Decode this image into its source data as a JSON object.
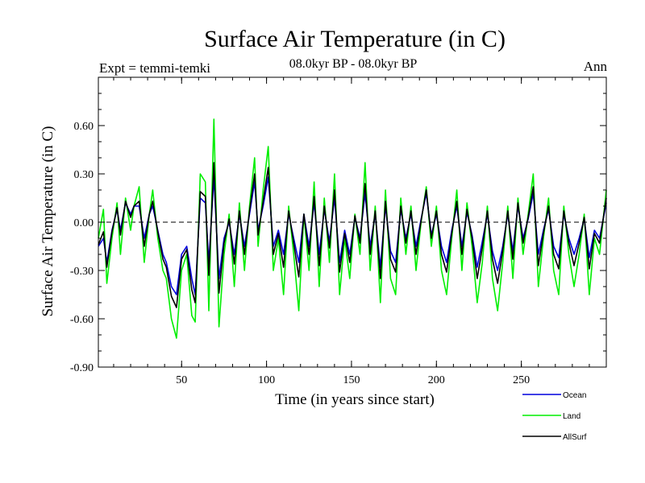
{
  "chart_data": {
    "type": "line",
    "title": "Surface Air Temperature (in C)",
    "subtitle": "08.0kyr BP - 08.0kyr BP",
    "top_left_label": "Expt = temmi-temki",
    "top_right_label": "Ann",
    "xlabel": "Time (in years since start)",
    "ylabel": "Surface Air Temperature (in C)",
    "xlim": [
      1,
      300
    ],
    "ylim": [
      -0.9,
      0.9
    ],
    "x_ticks": [
      50,
      100,
      150,
      200,
      250
    ],
    "x_tick_labels": [
      "50",
      "100",
      "150",
      "200",
      "250"
    ],
    "y_ticks": [
      -0.9,
      -0.6,
      -0.3,
      0.0,
      0.3,
      0.6
    ],
    "y_tick_labels": [
      "-0.90",
      "-0.60",
      "-0.30",
      "0.00",
      "0.30",
      "0.60"
    ],
    "zero_line": true,
    "legend_position": "bottom-right, below plot",
    "series": [
      {
        "name": "Land",
        "color": "#00ee00",
        "x": [
          1,
          4,
          6,
          9,
          12,
          14,
          17,
          20,
          22,
          25,
          28,
          31,
          33,
          36,
          39,
          41,
          44,
          47,
          50,
          53,
          56,
          58,
          61,
          64,
          66,
          69,
          72,
          75,
          78,
          81,
          84,
          87,
          90,
          93,
          95,
          98,
          101,
          104,
          107,
          110,
          113,
          116,
          119,
          122,
          125,
          128,
          131,
          134,
          137,
          140,
          143,
          146,
          149,
          152,
          155,
          158,
          161,
          164,
          167,
          170,
          173,
          176,
          179,
          182,
          185,
          188,
          191,
          194,
          197,
          200,
          203,
          206,
          209,
          212,
          215,
          218,
          221,
          224,
          227,
          230,
          233,
          236,
          239,
          242,
          245,
          248,
          251,
          254,
          257,
          260,
          263,
          266,
          269,
          272,
          275,
          278,
          281,
          284,
          287,
          290,
          293,
          296,
          300
        ],
        "y": [
          -0.1,
          0.08,
          -0.38,
          -0.1,
          0.12,
          -0.2,
          0.15,
          -0.05,
          0.1,
          0.22,
          -0.25,
          0.05,
          0.2,
          -0.1,
          -0.3,
          -0.35,
          -0.6,
          -0.72,
          -0.3,
          -0.2,
          -0.58,
          -0.62,
          0.3,
          0.25,
          -0.55,
          0.64,
          -0.65,
          -0.2,
          0.05,
          -0.4,
          0.12,
          -0.3,
          0.1,
          0.4,
          -0.15,
          0.2,
          0.47,
          -0.3,
          -0.1,
          -0.45,
          0.1,
          -0.2,
          -0.55,
          0.05,
          -0.3,
          0.25,
          -0.4,
          0.15,
          -0.25,
          0.3,
          -0.45,
          -0.1,
          -0.35,
          0.05,
          -0.2,
          0.37,
          -0.3,
          0.1,
          -0.5,
          0.2,
          -0.35,
          -0.45,
          0.15,
          -0.2,
          0.1,
          -0.3,
          0.0,
          0.22,
          -0.15,
          0.1,
          -0.3,
          -0.45,
          -0.1,
          0.2,
          -0.3,
          0.12,
          -0.15,
          -0.5,
          -0.25,
          0.1,
          -0.35,
          -0.55,
          -0.25,
          0.1,
          -0.35,
          0.15,
          -0.2,
          0.05,
          0.3,
          -0.4,
          -0.1,
          0.15,
          -0.3,
          -0.45,
          0.1,
          -0.2,
          -0.4,
          -0.2,
          0.05,
          -0.45,
          -0.1,
          -0.2,
          0.2
        ]
      },
      {
        "name": "Ocean",
        "color": "#0000dd",
        "x": [
          1,
          4,
          6,
          9,
          12,
          14,
          17,
          20,
          22,
          25,
          28,
          31,
          33,
          36,
          39,
          41,
          44,
          47,
          50,
          53,
          56,
          58,
          61,
          64,
          66,
          69,
          72,
          75,
          78,
          81,
          84,
          87,
          90,
          93,
          95,
          98,
          101,
          104,
          107,
          110,
          113,
          116,
          119,
          122,
          125,
          128,
          131,
          134,
          137,
          140,
          143,
          146,
          149,
          152,
          155,
          158,
          161,
          164,
          167,
          170,
          173,
          176,
          179,
          182,
          185,
          188,
          191,
          194,
          197,
          200,
          203,
          206,
          209,
          212,
          215,
          218,
          221,
          224,
          227,
          230,
          233,
          236,
          239,
          242,
          245,
          248,
          251,
          254,
          257,
          260,
          263,
          266,
          269,
          272,
          275,
          278,
          281,
          284,
          287,
          290,
          293,
          296,
          300
        ],
        "y": [
          -0.15,
          -0.1,
          -0.25,
          -0.05,
          0.08,
          -0.05,
          0.12,
          0.05,
          0.1,
          0.1,
          -0.1,
          0.05,
          0.1,
          -0.05,
          -0.2,
          -0.25,
          -0.4,
          -0.45,
          -0.2,
          -0.15,
          -0.35,
          -0.45,
          0.15,
          0.12,
          -0.25,
          0.28,
          -0.35,
          -0.1,
          0.0,
          -0.2,
          0.05,
          -0.15,
          0.05,
          0.25,
          -0.05,
          0.1,
          0.28,
          -0.15,
          -0.05,
          -0.2,
          0.05,
          -0.1,
          -0.25,
          0.05,
          -0.15,
          0.12,
          -0.2,
          0.08,
          -0.12,
          0.15,
          -0.25,
          -0.05,
          -0.2,
          0.03,
          -0.1,
          0.18,
          -0.15,
          0.05,
          -0.28,
          0.1,
          -0.18,
          -0.25,
          0.08,
          -0.1,
          0.05,
          -0.15,
          0.02,
          0.18,
          -0.08,
          0.05,
          -0.15,
          -0.25,
          -0.05,
          0.1,
          -0.15,
          0.06,
          -0.08,
          -0.28,
          -0.12,
          0.05,
          -0.18,
          -0.3,
          -0.15,
          0.05,
          -0.18,
          0.1,
          -0.1,
          0.02,
          0.18,
          -0.2,
          -0.05,
          0.08,
          -0.15,
          -0.22,
          0.05,
          -0.1,
          -0.2,
          -0.1,
          0.02,
          -0.22,
          -0.05,
          -0.1,
          0.12
        ]
      },
      {
        "name": "AllSurf",
        "color": "#000000",
        "x": [
          1,
          4,
          6,
          9,
          12,
          14,
          17,
          20,
          22,
          25,
          28,
          31,
          33,
          36,
          39,
          41,
          44,
          47,
          50,
          53,
          56,
          58,
          61,
          64,
          66,
          69,
          72,
          75,
          78,
          81,
          84,
          87,
          90,
          93,
          95,
          98,
          101,
          104,
          107,
          110,
          113,
          116,
          119,
          122,
          125,
          128,
          131,
          134,
          137,
          140,
          143,
          146,
          149,
          152,
          155,
          158,
          161,
          164,
          167,
          170,
          173,
          176,
          179,
          182,
          185,
          188,
          191,
          194,
          197,
          200,
          203,
          206,
          209,
          212,
          215,
          218,
          221,
          224,
          227,
          230,
          233,
          236,
          239,
          242,
          245,
          248,
          251,
          254,
          257,
          260,
          263,
          266,
          269,
          272,
          275,
          278,
          281,
          284,
          287,
          290,
          293,
          296,
          300
        ],
        "y": [
          -0.14,
          -0.06,
          -0.28,
          -0.06,
          0.09,
          -0.08,
          0.13,
          0.03,
          0.1,
          0.13,
          -0.15,
          0.05,
          0.13,
          -0.06,
          -0.23,
          -0.28,
          -0.46,
          -0.53,
          -0.23,
          -0.17,
          -0.42,
          -0.5,
          0.19,
          0.16,
          -0.33,
          0.37,
          -0.44,
          -0.13,
          0.02,
          -0.26,
          0.07,
          -0.2,
          0.07,
          0.3,
          -0.08,
          0.13,
          0.34,
          -0.2,
          -0.07,
          -0.28,
          0.07,
          -0.13,
          -0.34,
          0.05,
          -0.2,
          0.16,
          -0.27,
          0.1,
          -0.16,
          0.2,
          -0.31,
          -0.07,
          -0.25,
          0.04,
          -0.13,
          0.24,
          -0.2,
          0.07,
          -0.35,
          0.13,
          -0.23,
          -0.31,
          0.1,
          -0.13,
          0.07,
          -0.2,
          0.01,
          0.2,
          -0.1,
          0.07,
          -0.2,
          -0.31,
          -0.07,
          0.13,
          -0.2,
          0.08,
          -0.1,
          -0.35,
          -0.16,
          0.07,
          -0.23,
          -0.38,
          -0.18,
          0.07,
          -0.23,
          0.12,
          -0.13,
          0.03,
          0.22,
          -0.27,
          -0.07,
          0.1,
          -0.2,
          -0.29,
          0.07,
          -0.13,
          -0.27,
          -0.13,
          0.03,
          -0.29,
          -0.07,
          -0.13,
          0.15
        ]
      }
    ]
  }
}
